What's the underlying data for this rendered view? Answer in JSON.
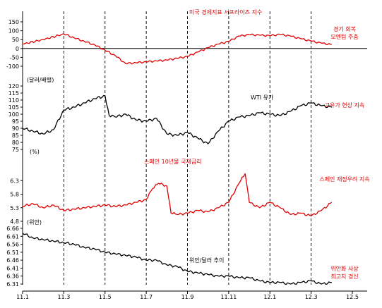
{
  "chart_data": {
    "type": "line",
    "x_ticks": [
      "11.1",
      "11.3",
      "11.5",
      "11.7",
      "11.9",
      "11.11",
      "12.1",
      "12.3",
      "12.5"
    ],
    "vertical_guides": [
      "11.3",
      "11.5",
      "11.7",
      "11.9",
      "11.11",
      "12.1",
      "12.3"
    ],
    "panels": [
      {
        "id": "surprise",
        "unit": "",
        "ylim": [
          -100,
          150
        ],
        "y_ticks": [
          150,
          100,
          50,
          0,
          -50,
          -100
        ],
        "zero_line": true,
        "color": "#e00000",
        "series_label": "미국 경제지표 서프라이즈 지수",
        "note_lines": [
          "경기 회복",
          "모멘텀 주춤"
        ],
        "series": [
          {
            "x": "11.1",
            "y": 25
          },
          {
            "x": "11.2",
            "y": 50
          },
          {
            "x": "11.3",
            "y": 82
          },
          {
            "x": "11.3.5",
            "y": 60
          },
          {
            "x": "11.4",
            "y": 40
          },
          {
            "x": "11.4.5",
            "y": 20
          },
          {
            "x": "11.5",
            "y": -10
          },
          {
            "x": "11.5.5",
            "y": -40
          },
          {
            "x": "11.6",
            "y": -85
          },
          {
            "x": "11.6.5",
            "y": -80
          },
          {
            "x": "11.7",
            "y": -75
          },
          {
            "x": "11.7.5",
            "y": -70
          },
          {
            "x": "11.8",
            "y": -65
          },
          {
            "x": "11.8.5",
            "y": -55
          },
          {
            "x": "11.9",
            "y": -45
          },
          {
            "x": "11.9.5",
            "y": -20
          },
          {
            "x": "11.10",
            "y": 5
          },
          {
            "x": "11.10.5",
            "y": 25
          },
          {
            "x": "11.11",
            "y": 40
          },
          {
            "x": "11.11.5",
            "y": 70
          },
          {
            "x": "11.12",
            "y": 78
          },
          {
            "x": "11.12.5",
            "y": 75
          },
          {
            "x": "12.1",
            "y": 72
          },
          {
            "x": "12.1.5",
            "y": 80
          },
          {
            "x": "12.2",
            "y": 70
          },
          {
            "x": "12.2.5",
            "y": 55
          },
          {
            "x": "12.3",
            "y": 42
          },
          {
            "x": "12.3.5",
            "y": 30
          },
          {
            "x": "12.4",
            "y": 22
          }
        ]
      },
      {
        "id": "wti",
        "unit": "(달러/배럴)",
        "ylim": [
          75,
          120
        ],
        "y_ticks": [
          120,
          115,
          110,
          105,
          100,
          95,
          90,
          85,
          80,
          75
        ],
        "color": "#000000",
        "series_label": "WTI 유가",
        "note_lines": [
          "고유가 현상 지속"
        ],
        "series": [
          {
            "x": "11.1",
            "y": 90
          },
          {
            "x": "11.1.5",
            "y": 88
          },
          {
            "x": "11.2",
            "y": 86
          },
          {
            "x": "11.2.5",
            "y": 89
          },
          {
            "x": "11.3",
            "y": 103
          },
          {
            "x": "11.3.5",
            "y": 105
          },
          {
            "x": "11.4",
            "y": 108
          },
          {
            "x": "11.4.5",
            "y": 111
          },
          {
            "x": "11.5",
            "y": 113
          },
          {
            "x": "11.5.2",
            "y": 99
          },
          {
            "x": "11.5.5",
            "y": 98
          },
          {
            "x": "11.6",
            "y": 100
          },
          {
            "x": "11.6.5",
            "y": 96
          },
          {
            "x": "11.7",
            "y": 95
          },
          {
            "x": "11.7.5",
            "y": 97
          },
          {
            "x": "11.8",
            "y": 86
          },
          {
            "x": "11.8.5",
            "y": 85
          },
          {
            "x": "11.9",
            "y": 87
          },
          {
            "x": "11.9.5",
            "y": 83
          },
          {
            "x": "11.10",
            "y": 79
          },
          {
            "x": "11.10.5",
            "y": 88
          },
          {
            "x": "11.11",
            "y": 95
          },
          {
            "x": "11.11.5",
            "y": 98
          },
          {
            "x": "11.12",
            "y": 99
          },
          {
            "x": "11.12.5",
            "y": 101
          },
          {
            "x": "12.1",
            "y": 100
          },
          {
            "x": "12.1.5",
            "y": 99
          },
          {
            "x": "12.2",
            "y": 102
          },
          {
            "x": "12.2.5",
            "y": 106
          },
          {
            "x": "12.3",
            "y": 108
          },
          {
            "x": "12.3.5",
            "y": 106
          },
          {
            "x": "12.4",
            "y": 105
          }
        ]
      },
      {
        "id": "spain",
        "unit": "(%)",
        "ylim": [
          4.8,
          6.8
        ],
        "y_ticks": [
          6.3,
          5.8,
          5.3,
          4.8
        ],
        "color": "#e00000",
        "series_label": "스페인 10년물 국채금리",
        "note_lines": [
          "스페인 재정우려 지속"
        ],
        "series": [
          {
            "x": "11.1",
            "y": 5.35
          },
          {
            "x": "11.1.5",
            "y": 5.45
          },
          {
            "x": "11.2",
            "y": 5.3
          },
          {
            "x": "11.2.5",
            "y": 5.4
          },
          {
            "x": "11.3",
            "y": 5.2
          },
          {
            "x": "11.3.5",
            "y": 5.25
          },
          {
            "x": "11.4",
            "y": 5.3
          },
          {
            "x": "11.4.5",
            "y": 5.35
          },
          {
            "x": "11.5",
            "y": 5.4
          },
          {
            "x": "11.5.5",
            "y": 5.35
          },
          {
            "x": "11.6",
            "y": 5.4
          },
          {
            "x": "11.6.5",
            "y": 5.5
          },
          {
            "x": "11.7",
            "y": 5.6
          },
          {
            "x": "11.7.3",
            "y": 6.0
          },
          {
            "x": "11.7.6",
            "y": 6.2
          },
          {
            "x": "11.8",
            "y": 6.1
          },
          {
            "x": "11.8.2",
            "y": 5.1
          },
          {
            "x": "11.8.5",
            "y": 5.05
          },
          {
            "x": "11.9",
            "y": 5.1
          },
          {
            "x": "11.9.5",
            "y": 5.2
          },
          {
            "x": "11.10",
            "y": 5.15
          },
          {
            "x": "11.10.5",
            "y": 5.3
          },
          {
            "x": "11.11",
            "y": 5.5
          },
          {
            "x": "11.11.5",
            "y": 6.2
          },
          {
            "x": "11.11.8",
            "y": 6.55
          },
          {
            "x": "11.12",
            "y": 5.5
          },
          {
            "x": "11.12.5",
            "y": 5.3
          },
          {
            "x": "12.1",
            "y": 5.5
          },
          {
            "x": "12.1.5",
            "y": 5.3
          },
          {
            "x": "12.2",
            "y": 5.05
          },
          {
            "x": "12.2.5",
            "y": 5.1
          },
          {
            "x": "12.3",
            "y": 5.0
          },
          {
            "x": "12.3.5",
            "y": 5.2
          },
          {
            "x": "12.4",
            "y": 5.5
          }
        ]
      },
      {
        "id": "cny",
        "unit": "(위안)",
        "ylim": [
          6.31,
          6.66
        ],
        "y_ticks": [
          6.66,
          6.61,
          6.56,
          6.51,
          6.46,
          6.41,
          6.36,
          6.31
        ],
        "color": "#000000",
        "series_label": "위안/달러 추이",
        "note_lines": [
          "위안화 사상",
          "최고치 경신"
        ],
        "series": [
          {
            "x": "11.1",
            "y": 6.63
          },
          {
            "x": "11.1.5",
            "y": 6.6
          },
          {
            "x": "11.2",
            "y": 6.59
          },
          {
            "x": "11.2.5",
            "y": 6.58
          },
          {
            "x": "11.3",
            "y": 6.57
          },
          {
            "x": "11.3.5",
            "y": 6.56
          },
          {
            "x": "11.4",
            "y": 6.54
          },
          {
            "x": "11.4.5",
            "y": 6.53
          },
          {
            "x": "11.5",
            "y": 6.51
          },
          {
            "x": "11.5.5",
            "y": 6.5
          },
          {
            "x": "11.6",
            "y": 6.49
          },
          {
            "x": "11.6.5",
            "y": 6.48
          },
          {
            "x": "11.7",
            "y": 6.46
          },
          {
            "x": "11.7.5",
            "y": 6.46
          },
          {
            "x": "11.8",
            "y": 6.43
          },
          {
            "x": "11.8.5",
            "y": 6.42
          },
          {
            "x": "11.9",
            "y": 6.39
          },
          {
            "x": "11.9.5",
            "y": 6.38
          },
          {
            "x": "11.10",
            "y": 6.37
          },
          {
            "x": "11.10.5",
            "y": 6.36
          },
          {
            "x": "11.11",
            "y": 6.36
          },
          {
            "x": "11.11.5",
            "y": 6.35
          },
          {
            "x": "11.12",
            "y": 6.35
          },
          {
            "x": "11.12.5",
            "y": 6.33
          },
          {
            "x": "12.1",
            "y": 6.32
          },
          {
            "x": "12.1.5",
            "y": 6.32
          },
          {
            "x": "12.2",
            "y": 6.31
          },
          {
            "x": "12.2.5",
            "y": 6.32
          },
          {
            "x": "12.3",
            "y": 6.33
          },
          {
            "x": "12.3.5",
            "y": 6.31
          },
          {
            "x": "12.4",
            "y": 6.32
          }
        ]
      }
    ]
  }
}
